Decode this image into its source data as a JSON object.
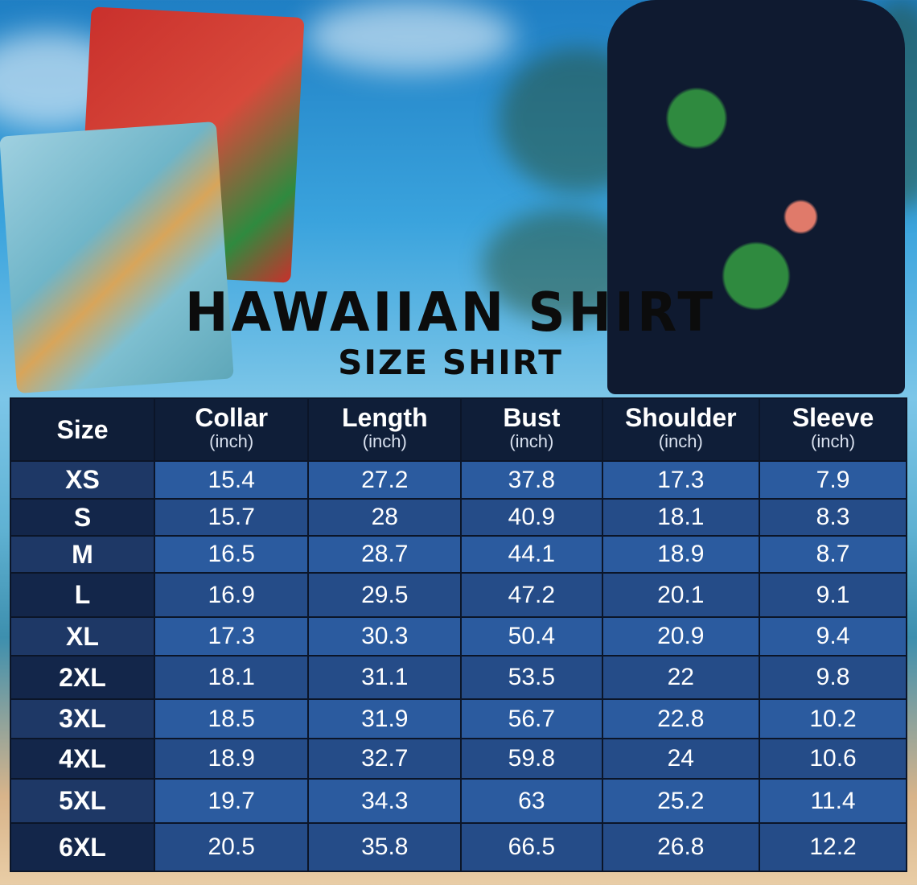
{
  "title": "HAWAIIAN SHIRT",
  "subtitle": "SIZE SHIRT",
  "table": {
    "headers": [
      {
        "label": "Size",
        "unit": ""
      },
      {
        "label": "Collar",
        "unit": "(inch)"
      },
      {
        "label": "Length",
        "unit": "(inch)"
      },
      {
        "label": "Bust",
        "unit": "(inch)"
      },
      {
        "label": "Shoulder",
        "unit": "(inch)"
      },
      {
        "label": "Sleeve",
        "unit": "(inch)"
      }
    ],
    "rows": [
      [
        "XS",
        "15.4",
        "27.2",
        "37.8",
        "17.3",
        "7.9"
      ],
      [
        "S",
        "15.7",
        "28",
        "40.9",
        "18.1",
        "8.3"
      ],
      [
        "M",
        "16.5",
        "28.7",
        "44.1",
        "18.9",
        "8.7"
      ],
      [
        "L",
        "16.9",
        "29.5",
        "47.2",
        "20.1",
        "9.1"
      ],
      [
        "XL",
        "17.3",
        "30.3",
        "50.4",
        "20.9",
        "9.4"
      ],
      [
        "2XL",
        "18.1",
        "31.1",
        "53.5",
        "22",
        "9.8"
      ],
      [
        "3XL",
        "18.5",
        "31.9",
        "56.7",
        "22.8",
        "10.2"
      ],
      [
        "4XL",
        "18.9",
        "32.7",
        "59.8",
        "24",
        "10.6"
      ],
      [
        "5XL",
        "19.7",
        "34.3",
        "63",
        "25.2",
        "11.4"
      ],
      [
        "6XL",
        "20.5",
        "35.8",
        "66.5",
        "26.8",
        "12.2"
      ]
    ]
  },
  "colors": {
    "header": "#0f1e38",
    "row_light": "#2b5b9f",
    "row_dark": "#254c88",
    "title": "#0c0c0c"
  }
}
